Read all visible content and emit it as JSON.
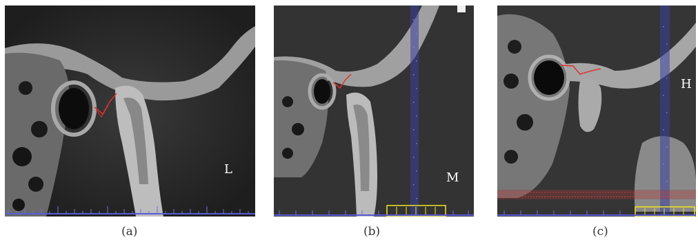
{
  "panels": [
    {
      "id": "a",
      "letter": "L",
      "caption": "(a)"
    },
    {
      "id": "b",
      "letter": "M",
      "caption": "(b)"
    },
    {
      "id": "c",
      "letter": "H",
      "caption": "(c)"
    }
  ],
  "colors": {
    "background": "#2a2a2a",
    "bone": "#bdbdbd",
    "outline": "#e0302f",
    "scale": "#5a5bd8",
    "scale_box": "#f2e41f"
  }
}
